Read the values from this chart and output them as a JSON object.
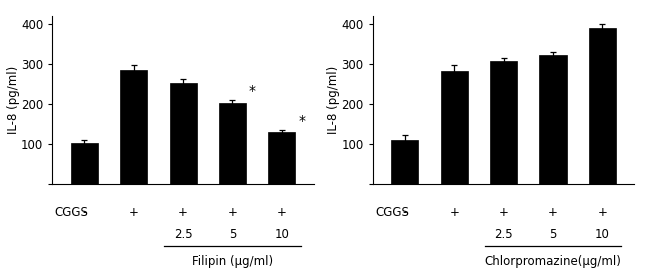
{
  "left": {
    "bars": [
      103,
      285,
      253,
      202,
      130
    ],
    "errors": [
      8,
      12,
      10,
      8,
      6
    ],
    "bar_color": "#000000",
    "ylabel": "IL-8 (pg/ml)",
    "ylim": [
      0,
      420
    ],
    "yticks": [
      0,
      100,
      200,
      300,
      400
    ],
    "cggs_signs": [
      "-",
      "+",
      "+",
      "+",
      "+"
    ],
    "dose_labels": [
      "",
      "",
      "2.5",
      "5",
      "10"
    ],
    "xlabel_group": "Filipin (μg/ml)",
    "dose_indices": [
      2,
      3,
      4
    ],
    "star_indices": [
      3,
      4
    ],
    "star_offsets": [
      0.33,
      0.33
    ]
  },
  "right": {
    "bars": [
      110,
      283,
      308,
      323,
      390
    ],
    "errors": [
      12,
      15,
      8,
      8,
      10
    ],
    "bar_color": "#000000",
    "ylabel": "IL-8 (pg/ml)",
    "ylim": [
      0,
      420
    ],
    "yticks": [
      0,
      100,
      200,
      300,
      400
    ],
    "cggs_signs": [
      "-",
      "+",
      "+",
      "+",
      "+"
    ],
    "dose_labels": [
      "",
      "",
      "2.5",
      "5",
      "10"
    ],
    "xlabel_group": "Chlorpromazine(μg/ml)",
    "dose_indices": [
      2,
      3,
      4
    ]
  },
  "bar_width": 0.55,
  "fontsize": 8.5,
  "tick_fontsize": 8.5
}
